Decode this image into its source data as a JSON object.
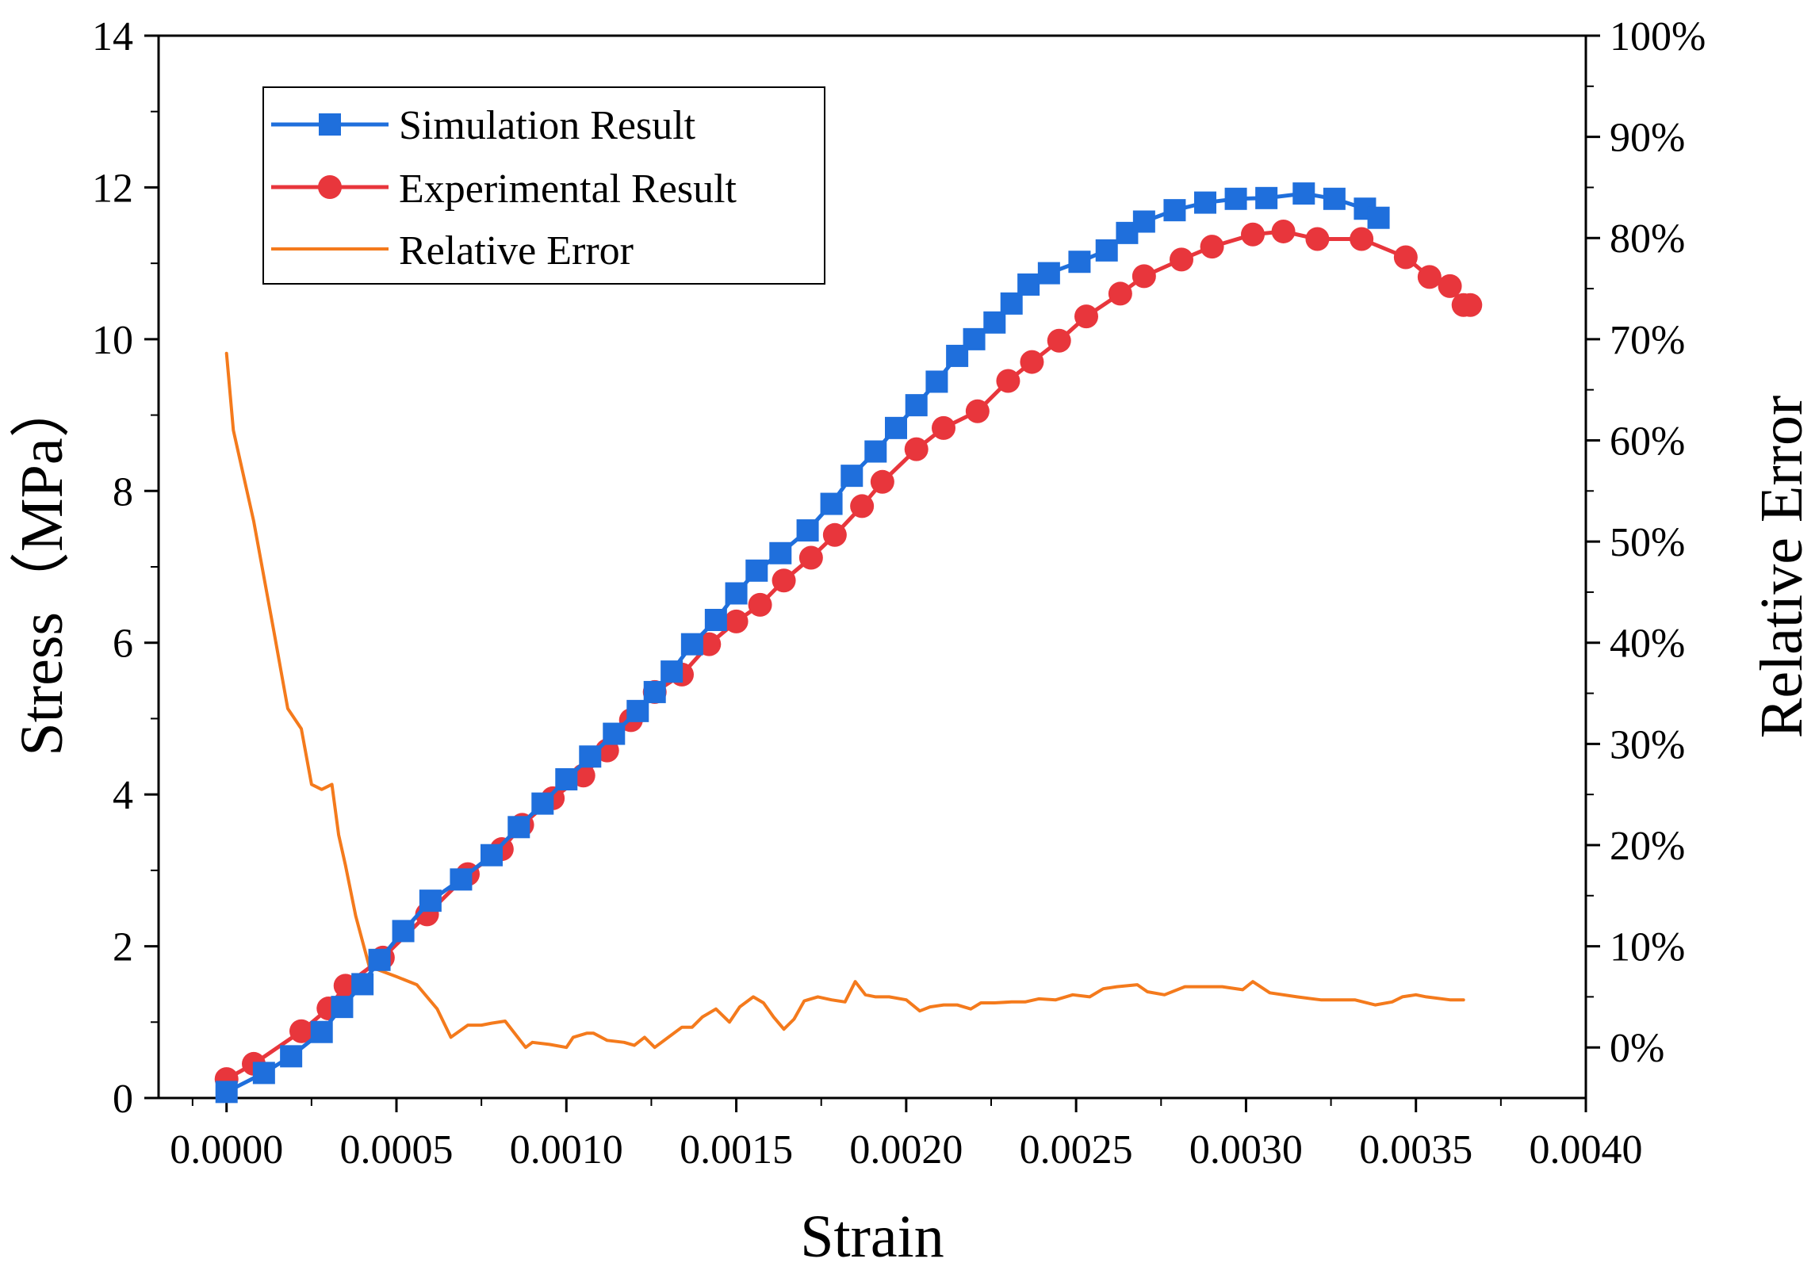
{
  "chart_data": {
    "type": "line",
    "title": "",
    "xlabel": "Strain",
    "ylabel": "Stress（MPa）",
    "y2label": "Relative Error",
    "xlim": [
      -0.0002,
      0.004
    ],
    "ylim": [
      0,
      14
    ],
    "y2lim": [
      -0.05,
      1.0
    ],
    "xticks": [
      0.0,
      0.0005,
      0.001,
      0.0015,
      0.002,
      0.0025,
      0.003,
      0.0035,
      0.004
    ],
    "xtick_labels": [
      "0.0000",
      "0.0005",
      "0.0010",
      "0.0015",
      "0.0020",
      "0.0025",
      "0.0030",
      "0.0035",
      "0.0040"
    ],
    "yticks": [
      0,
      2,
      4,
      6,
      8,
      10,
      12,
      14
    ],
    "ytick_labels": [
      "0",
      "2",
      "4",
      "6",
      "8",
      "10",
      "12",
      "14"
    ],
    "y2ticks": [
      0,
      0.1,
      0.2,
      0.3,
      0.4,
      0.5,
      0.6,
      0.7,
      0.8,
      0.9,
      1.0
    ],
    "y2tick_labels": [
      "0%",
      "10%",
      "20%",
      "30%",
      "40%",
      "50%",
      "60%",
      "70%",
      "80%",
      "90%",
      "100%"
    ],
    "grid": false,
    "legend_position": "top-left",
    "series": [
      {
        "name": "Simulation Result",
        "color": "#1f6fdc",
        "marker": "square",
        "axis": "left",
        "x": [
          0.0,
          0.00011,
          0.00019,
          0.00028,
          0.00034,
          0.0004,
          0.00045,
          0.00052,
          0.0006,
          0.00069,
          0.00078,
          0.00086,
          0.00093,
          0.001,
          0.00107,
          0.00114,
          0.00121,
          0.00126,
          0.00131,
          0.00137,
          0.00144,
          0.0015,
          0.00156,
          0.00163,
          0.00171,
          0.00178,
          0.00184,
          0.00191,
          0.00197,
          0.00203,
          0.00209,
          0.00215,
          0.0022,
          0.00226,
          0.00231,
          0.00236,
          0.00242,
          0.00251,
          0.00259,
          0.00265,
          0.0027,
          0.00279,
          0.00288,
          0.00297,
          0.00306,
          0.00317,
          0.00326,
          0.00335,
          0.00339
        ],
        "values": [
          0.08,
          0.33,
          0.55,
          0.87,
          1.2,
          1.5,
          1.82,
          2.2,
          2.6,
          2.88,
          3.2,
          3.57,
          3.88,
          4.2,
          4.5,
          4.8,
          5.1,
          5.35,
          5.62,
          5.98,
          6.3,
          6.65,
          6.95,
          7.18,
          7.48,
          7.83,
          8.2,
          8.52,
          8.83,
          9.13,
          9.44,
          9.78,
          10.0,
          10.22,
          10.47,
          10.72,
          10.87,
          11.02,
          11.17,
          11.4,
          11.55,
          11.7,
          11.8,
          11.85,
          11.86,
          11.92,
          11.85,
          11.72,
          11.6
        ]
      },
      {
        "name": "Experimental Result",
        "color": "#e8363c",
        "marker": "circle",
        "axis": "left",
        "x": [
          0.0,
          8e-05,
          0.00022,
          0.0003,
          0.00035,
          0.00046,
          0.00059,
          0.00071,
          0.00081,
          0.00087,
          0.00096,
          0.00105,
          0.00112,
          0.00119,
          0.00126,
          0.00134,
          0.00142,
          0.0015,
          0.00157,
          0.00164,
          0.00172,
          0.00179,
          0.00187,
          0.00193,
          0.00203,
          0.00211,
          0.00221,
          0.0023,
          0.00237,
          0.00245,
          0.00253,
          0.00263,
          0.0027,
          0.00281,
          0.0029,
          0.00302,
          0.00311,
          0.00321,
          0.00334,
          0.00347,
          0.00354,
          0.0036,
          0.00364,
          0.00366
        ],
        "values": [
          0.25,
          0.45,
          0.88,
          1.18,
          1.48,
          1.85,
          2.42,
          2.95,
          3.28,
          3.6,
          3.95,
          4.25,
          4.58,
          4.98,
          5.35,
          5.58,
          5.98,
          6.28,
          6.5,
          6.82,
          7.12,
          7.42,
          7.8,
          8.12,
          8.55,
          8.83,
          9.05,
          9.45,
          9.7,
          9.98,
          10.3,
          10.6,
          10.83,
          11.05,
          11.22,
          11.38,
          11.42,
          11.32,
          11.32,
          11.08,
          10.82,
          10.7,
          10.45,
          10.45
        ]
      },
      {
        "name": "Relative Error",
        "color": "#f47a1c",
        "marker": "none",
        "axis": "right",
        "x": [
          0.0,
          2e-05,
          8e-05,
          0.00014,
          0.00018,
          0.00022,
          0.00025,
          0.00028,
          0.00031,
          0.00033,
          0.00035,
          0.00038,
          0.00042,
          0.00046,
          0.0005,
          0.00056,
          0.00062,
          0.00066,
          0.00071,
          0.00075,
          0.00078,
          0.00082,
          0.00088,
          0.0009,
          0.00095,
          0.001,
          0.00102,
          0.00106,
          0.00108,
          0.00112,
          0.00117,
          0.0012,
          0.00123,
          0.00126,
          0.0013,
          0.00134,
          0.00137,
          0.0014,
          0.00144,
          0.00148,
          0.00151,
          0.00155,
          0.00158,
          0.00161,
          0.00164,
          0.00167,
          0.0017,
          0.00174,
          0.00178,
          0.00182,
          0.00185,
          0.00188,
          0.00191,
          0.00195,
          0.002,
          0.00204,
          0.00207,
          0.00211,
          0.00215,
          0.00219,
          0.00222,
          0.00226,
          0.00231,
          0.00235,
          0.00239,
          0.00244,
          0.00249,
          0.00254,
          0.00258,
          0.00262,
          0.00268,
          0.00271,
          0.00276,
          0.00282,
          0.00288,
          0.00293,
          0.00299,
          0.00302,
          0.00307,
          0.00315,
          0.00322,
          0.00329,
          0.00332,
          0.00338,
          0.00343,
          0.00346,
          0.0035,
          0.00353,
          0.0036,
          0.00364
        ],
        "values": [
          0.686,
          0.61,
          0.52,
          0.41,
          0.335,
          0.315,
          0.26,
          0.255,
          0.26,
          0.21,
          0.18,
          0.13,
          0.08,
          0.075,
          0.07,
          0.062,
          0.038,
          0.01,
          0.022,
          0.022,
          0.024,
          0.026,
          0.0,
          0.005,
          0.003,
          0.0,
          0.01,
          0.014,
          0.014,
          0.007,
          0.005,
          0.002,
          0.01,
          0.0,
          0.01,
          0.02,
          0.02,
          0.03,
          0.038,
          0.025,
          0.04,
          0.05,
          0.044,
          0.03,
          0.018,
          0.028,
          0.046,
          0.05,
          0.047,
          0.045,
          0.065,
          0.052,
          0.05,
          0.05,
          0.047,
          0.036,
          0.04,
          0.042,
          0.042,
          0.038,
          0.044,
          0.044,
          0.045,
          0.045,
          0.048,
          0.047,
          0.052,
          0.05,
          0.058,
          0.06,
          0.062,
          0.055,
          0.052,
          0.06,
          0.06,
          0.06,
          0.057,
          0.065,
          0.054,
          0.05,
          0.047,
          0.047,
          0.047,
          0.042,
          0.045,
          0.05,
          0.052,
          0.05,
          0.047,
          0.047
        ]
      }
    ]
  }
}
